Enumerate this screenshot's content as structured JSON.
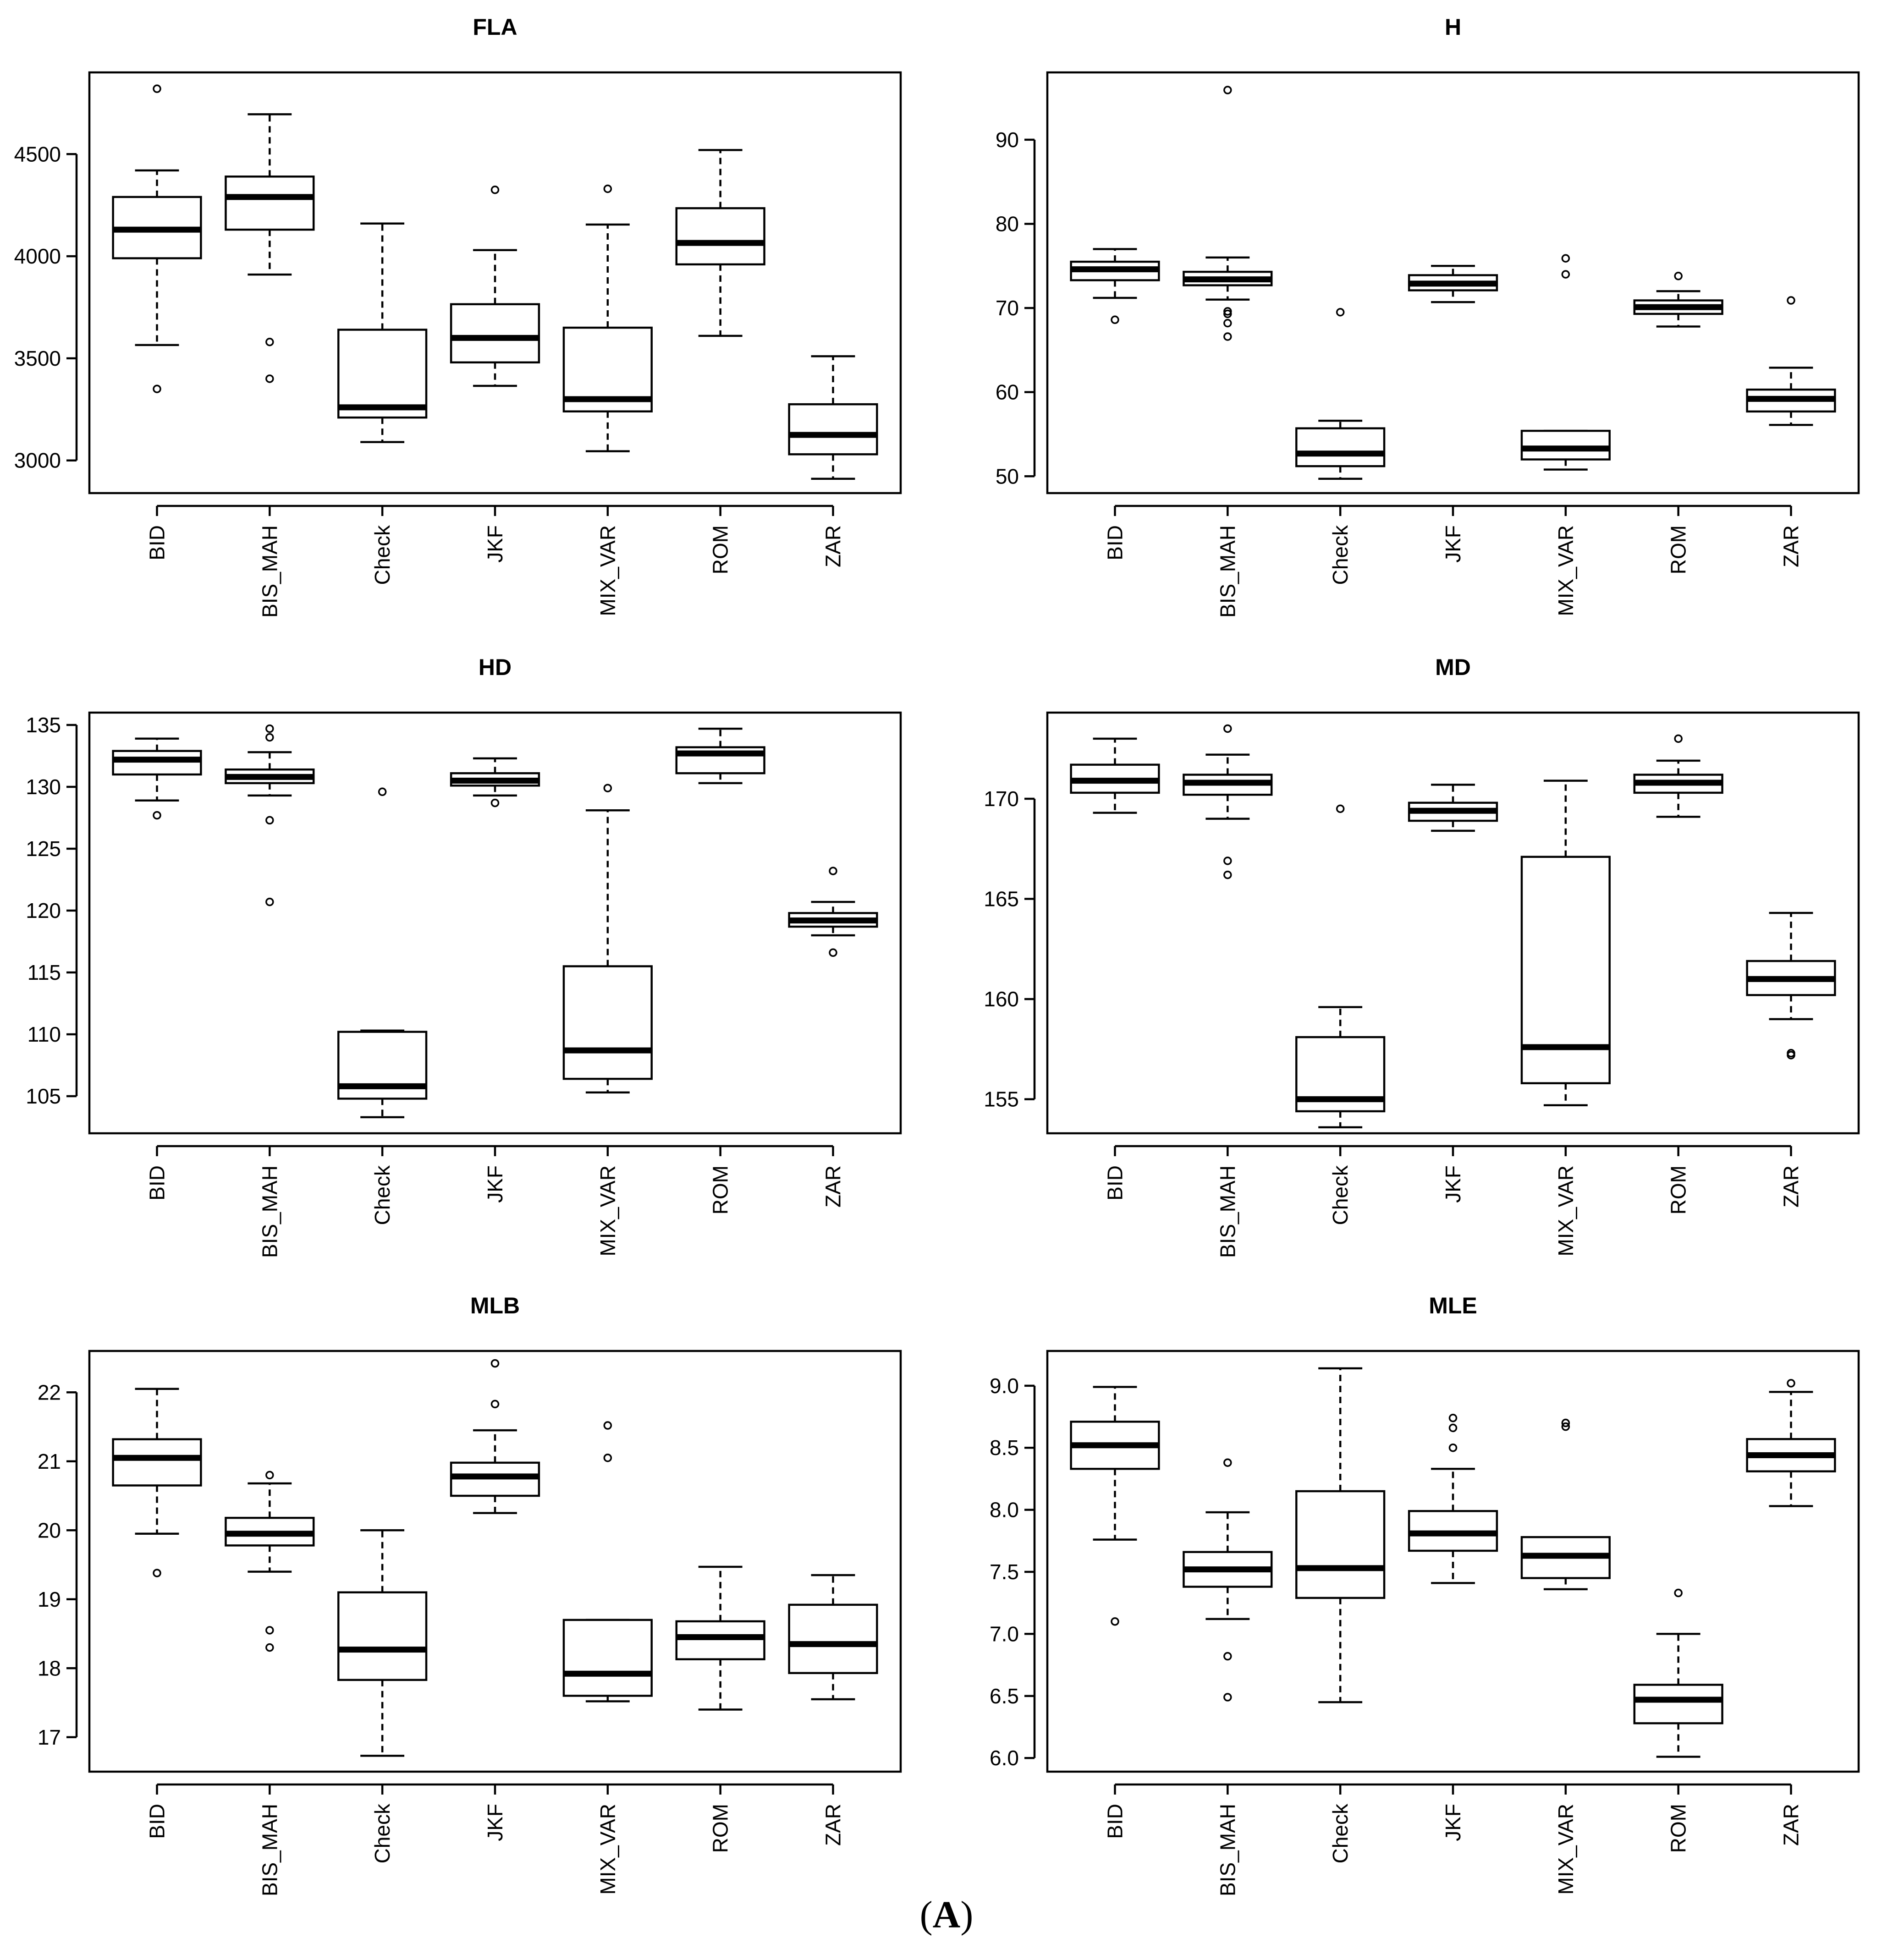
{
  "figure_caption": {
    "open": "(",
    "letter": "A",
    "close": ")"
  },
  "chart_data": [
    {
      "type": "boxplot",
      "title": "FLA",
      "xlabel": "",
      "ylabel": "",
      "categories": [
        "BID",
        "BIS_MAH",
        "Check",
        "JKF",
        "MIX_VAR",
        "ROM",
        "ZAR"
      ],
      "ylim": [
        2840,
        4900
      ],
      "yticks": [
        3000,
        3500,
        4000,
        4500
      ],
      "ytick_labels": [
        "3000",
        "3500",
        "4000",
        "4500"
      ],
      "boxes": [
        {
          "whisker_low": 3565,
          "q1": 3990,
          "median": 4130,
          "q3": 4290,
          "whisker_high": 4420,
          "outliers": [
            3350,
            4820
          ]
        },
        {
          "whisker_low": 3910,
          "q1": 4130,
          "median": 4290,
          "q3": 4390,
          "whisker_high": 4695,
          "outliers": [
            3580,
            3400
          ]
        },
        {
          "whisker_low": 3090,
          "q1": 3210,
          "median": 3260,
          "q3": 3640,
          "whisker_high": 4160,
          "outliers": []
        },
        {
          "whisker_low": 3365,
          "q1": 3480,
          "median": 3600,
          "q3": 3765,
          "whisker_high": 4030,
          "outliers": [
            4325
          ]
        },
        {
          "whisker_low": 3045,
          "q1": 3240,
          "median": 3300,
          "q3": 3650,
          "whisker_high": 4155,
          "outliers": [
            4330
          ]
        },
        {
          "whisker_low": 3610,
          "q1": 3960,
          "median": 4065,
          "q3": 4235,
          "whisker_high": 4520,
          "outliers": []
        },
        {
          "whisker_low": 2910,
          "q1": 3030,
          "median": 3125,
          "q3": 3275,
          "whisker_high": 3510,
          "outliers": []
        }
      ]
    },
    {
      "type": "boxplot",
      "title": "H",
      "xlabel": "",
      "ylabel": "",
      "categories": [
        "BID",
        "BIS_MAH",
        "Check",
        "JKF",
        "MIX_VAR",
        "ROM",
        "ZAR"
      ],
      "ylim": [
        48,
        98
      ],
      "yticks": [
        50,
        60,
        70,
        80,
        90
      ],
      "ytick_labels": [
        "50",
        "60",
        "70",
        "80",
        "90"
      ],
      "boxes": [
        {
          "whisker_low": 71.2,
          "q1": 73.3,
          "median": 74.6,
          "q3": 75.5,
          "whisker_high": 77.0,
          "outliers": [
            68.6
          ]
        },
        {
          "whisker_low": 71.0,
          "q1": 72.7,
          "median": 73.4,
          "q3": 74.3,
          "whisker_high": 76.0,
          "outliers": [
            95.9,
            69.6,
            69.3,
            68.2,
            66.6
          ]
        },
        {
          "whisker_low": 49.7,
          "q1": 51.2,
          "median": 52.7,
          "q3": 55.7,
          "whisker_high": 56.6,
          "outliers": [
            69.5
          ]
        },
        {
          "whisker_low": 70.7,
          "q1": 72.1,
          "median": 72.9,
          "q3": 73.9,
          "whisker_high": 75.0,
          "outliers": []
        },
        {
          "whisker_low": 50.8,
          "q1": 52.0,
          "median": 53.3,
          "q3": 55.4,
          "whisker_high": 55.4,
          "outliers": [
            75.9,
            74.0
          ]
        },
        {
          "whisker_low": 67.8,
          "q1": 69.3,
          "median": 70.1,
          "q3": 70.9,
          "whisker_high": 72.0,
          "outliers": [
            73.8
          ]
        },
        {
          "whisker_low": 56.1,
          "q1": 57.7,
          "median": 59.2,
          "q3": 60.3,
          "whisker_high": 62.9,
          "outliers": [
            70.9
          ]
        }
      ]
    },
    {
      "type": "boxplot",
      "title": "HD",
      "xlabel": "",
      "ylabel": "",
      "categories": [
        "BID",
        "BIS_MAH",
        "Check",
        "JKF",
        "MIX_VAR",
        "ROM",
        "ZAR"
      ],
      "ylim": [
        102,
        136
      ],
      "yticks": [
        105,
        110,
        115,
        120,
        125,
        130,
        135
      ],
      "ytick_labels": [
        "105",
        "110",
        "115",
        "120",
        "125",
        "130",
        "135"
      ],
      "boxes": [
        {
          "whisker_low": 128.9,
          "q1": 131.0,
          "median": 132.2,
          "q3": 132.9,
          "whisker_high": 133.9,
          "outliers": [
            127.7
          ]
        },
        {
          "whisker_low": 129.3,
          "q1": 130.3,
          "median": 130.8,
          "q3": 131.4,
          "whisker_high": 132.8,
          "outliers": [
            134.7,
            134.0,
            127.3,
            120.7
          ]
        },
        {
          "whisker_low": 103.3,
          "q1": 104.8,
          "median": 105.8,
          "q3": 110.2,
          "whisker_high": 110.3,
          "outliers": [
            129.6
          ]
        },
        {
          "whisker_low": 129.3,
          "q1": 130.1,
          "median": 130.5,
          "q3": 131.1,
          "whisker_high": 132.3,
          "outliers": [
            128.7
          ]
        },
        {
          "whisker_low": 105.3,
          "q1": 106.4,
          "median": 108.7,
          "q3": 115.5,
          "whisker_high": 128.1,
          "outliers": [
            129.9
          ]
        },
        {
          "whisker_low": 130.3,
          "q1": 131.1,
          "median": 132.7,
          "q3": 133.2,
          "whisker_high": 134.7,
          "outliers": []
        },
        {
          "whisker_low": 118.0,
          "q1": 118.7,
          "median": 119.2,
          "q3": 119.8,
          "whisker_high": 120.7,
          "outliers": [
            123.2,
            116.6
          ]
        }
      ]
    },
    {
      "type": "boxplot",
      "title": "MD",
      "xlabel": "",
      "ylabel": "",
      "categories": [
        "BID",
        "BIS_MAH",
        "Check",
        "JKF",
        "MIX_VAR",
        "ROM",
        "ZAR"
      ],
      "ylim": [
        153.3,
        174.3
      ],
      "yticks": [
        155,
        160,
        165,
        170
      ],
      "ytick_labels": [
        "155",
        "160",
        "165",
        "170"
      ],
      "boxes": [
        {
          "whisker_low": 169.3,
          "q1": 170.3,
          "median": 170.9,
          "q3": 171.7,
          "whisker_high": 173.0,
          "outliers": []
        },
        {
          "whisker_low": 169.0,
          "q1": 170.2,
          "median": 170.8,
          "q3": 171.2,
          "whisker_high": 172.2,
          "outliers": [
            173.5,
            166.9,
            166.2
          ]
        },
        {
          "whisker_low": 153.6,
          "q1": 154.4,
          "median": 155.0,
          "q3": 158.1,
          "whisker_high": 159.6,
          "outliers": [
            169.5
          ]
        },
        {
          "whisker_low": 168.4,
          "q1": 168.9,
          "median": 169.4,
          "q3": 169.8,
          "whisker_high": 170.7,
          "outliers": []
        },
        {
          "whisker_low": 154.7,
          "q1": 155.8,
          "median": 157.6,
          "q3": 167.1,
          "whisker_high": 170.9,
          "outliers": []
        },
        {
          "whisker_low": 169.1,
          "q1": 170.3,
          "median": 170.8,
          "q3": 171.2,
          "whisker_high": 171.9,
          "outliers": [
            173.0
          ]
        },
        {
          "whisker_low": 159.0,
          "q1": 160.2,
          "median": 161.0,
          "q3": 161.9,
          "whisker_high": 164.3,
          "outliers": [
            157.3,
            157.2
          ]
        }
      ]
    },
    {
      "type": "boxplot",
      "title": "MLB",
      "xlabel": "",
      "ylabel": "",
      "categories": [
        "BID",
        "BIS_MAH",
        "Check",
        "JKF",
        "MIX_VAR",
        "ROM",
        "ZAR"
      ],
      "ylim": [
        16.5,
        22.6
      ],
      "yticks": [
        17,
        18,
        19,
        20,
        21,
        22
      ],
      "ytick_labels": [
        "17",
        "18",
        "19",
        "20",
        "21",
        "22"
      ],
      "boxes": [
        {
          "whisker_low": 19.95,
          "q1": 20.65,
          "median": 21.05,
          "q3": 21.32,
          "whisker_high": 22.05,
          "outliers": [
            19.38
          ]
        },
        {
          "whisker_low": 19.4,
          "q1": 19.78,
          "median": 19.95,
          "q3": 20.18,
          "whisker_high": 20.68,
          "outliers": [
            20.8,
            18.55,
            18.3
          ]
        },
        {
          "whisker_low": 16.73,
          "q1": 17.83,
          "median": 18.27,
          "q3": 19.1,
          "whisker_high": 20.0,
          "outliers": []
        },
        {
          "whisker_low": 20.25,
          "q1": 20.5,
          "median": 20.78,
          "q3": 20.98,
          "whisker_high": 21.45,
          "outliers": [
            22.42,
            21.83
          ]
        },
        {
          "whisker_low": 17.52,
          "q1": 17.6,
          "median": 17.92,
          "q3": 18.7,
          "whisker_high": 18.7,
          "outliers": [
            21.52,
            21.05
          ]
        },
        {
          "whisker_low": 17.4,
          "q1": 18.13,
          "median": 18.45,
          "q3": 18.68,
          "whisker_high": 19.47,
          "outliers": []
        },
        {
          "whisker_low": 17.55,
          "q1": 17.93,
          "median": 18.35,
          "q3": 18.92,
          "whisker_high": 19.35,
          "outliers": []
        }
      ]
    },
    {
      "type": "boxplot",
      "title": "MLE",
      "xlabel": "",
      "ylabel": "",
      "categories": [
        "BID",
        "BIS_MAH",
        "Check",
        "JKF",
        "MIX_VAR",
        "ROM",
        "ZAR"
      ],
      "ylim": [
        5.89,
        9.28
      ],
      "yticks": [
        6.0,
        6.5,
        7.0,
        7.5,
        8.0,
        8.5,
        9.0
      ],
      "ytick_labels": [
        "6.0",
        "6.5",
        "7.0",
        "7.5",
        "8.0",
        "8.5",
        "9.0"
      ],
      "boxes": [
        {
          "whisker_low": 7.76,
          "q1": 8.33,
          "median": 8.52,
          "q3": 8.71,
          "whisker_high": 8.99,
          "outliers": [
            7.1
          ]
        },
        {
          "whisker_low": 7.12,
          "q1": 7.38,
          "median": 7.52,
          "q3": 7.66,
          "whisker_high": 7.98,
          "outliers": [
            8.38,
            6.82,
            6.49
          ]
        },
        {
          "whisker_low": 6.45,
          "q1": 7.29,
          "median": 7.53,
          "q3": 8.15,
          "whisker_high": 9.14,
          "outliers": []
        },
        {
          "whisker_low": 7.41,
          "q1": 7.67,
          "median": 7.81,
          "q3": 7.99,
          "whisker_high": 8.33,
          "outliers": [
            8.74,
            8.66,
            8.5
          ]
        },
        {
          "whisker_low": 7.36,
          "q1": 7.45,
          "median": 7.63,
          "q3": 7.78,
          "whisker_high": 7.78,
          "outliers": [
            8.7,
            8.67
          ]
        },
        {
          "whisker_low": 6.01,
          "q1": 6.28,
          "median": 6.47,
          "q3": 6.59,
          "whisker_high": 7.0,
          "outliers": [
            7.33
          ]
        },
        {
          "whisker_low": 8.03,
          "q1": 8.31,
          "median": 8.44,
          "q3": 8.57,
          "whisker_high": 8.95,
          "outliers": [
            9.02
          ]
        }
      ]
    }
  ]
}
